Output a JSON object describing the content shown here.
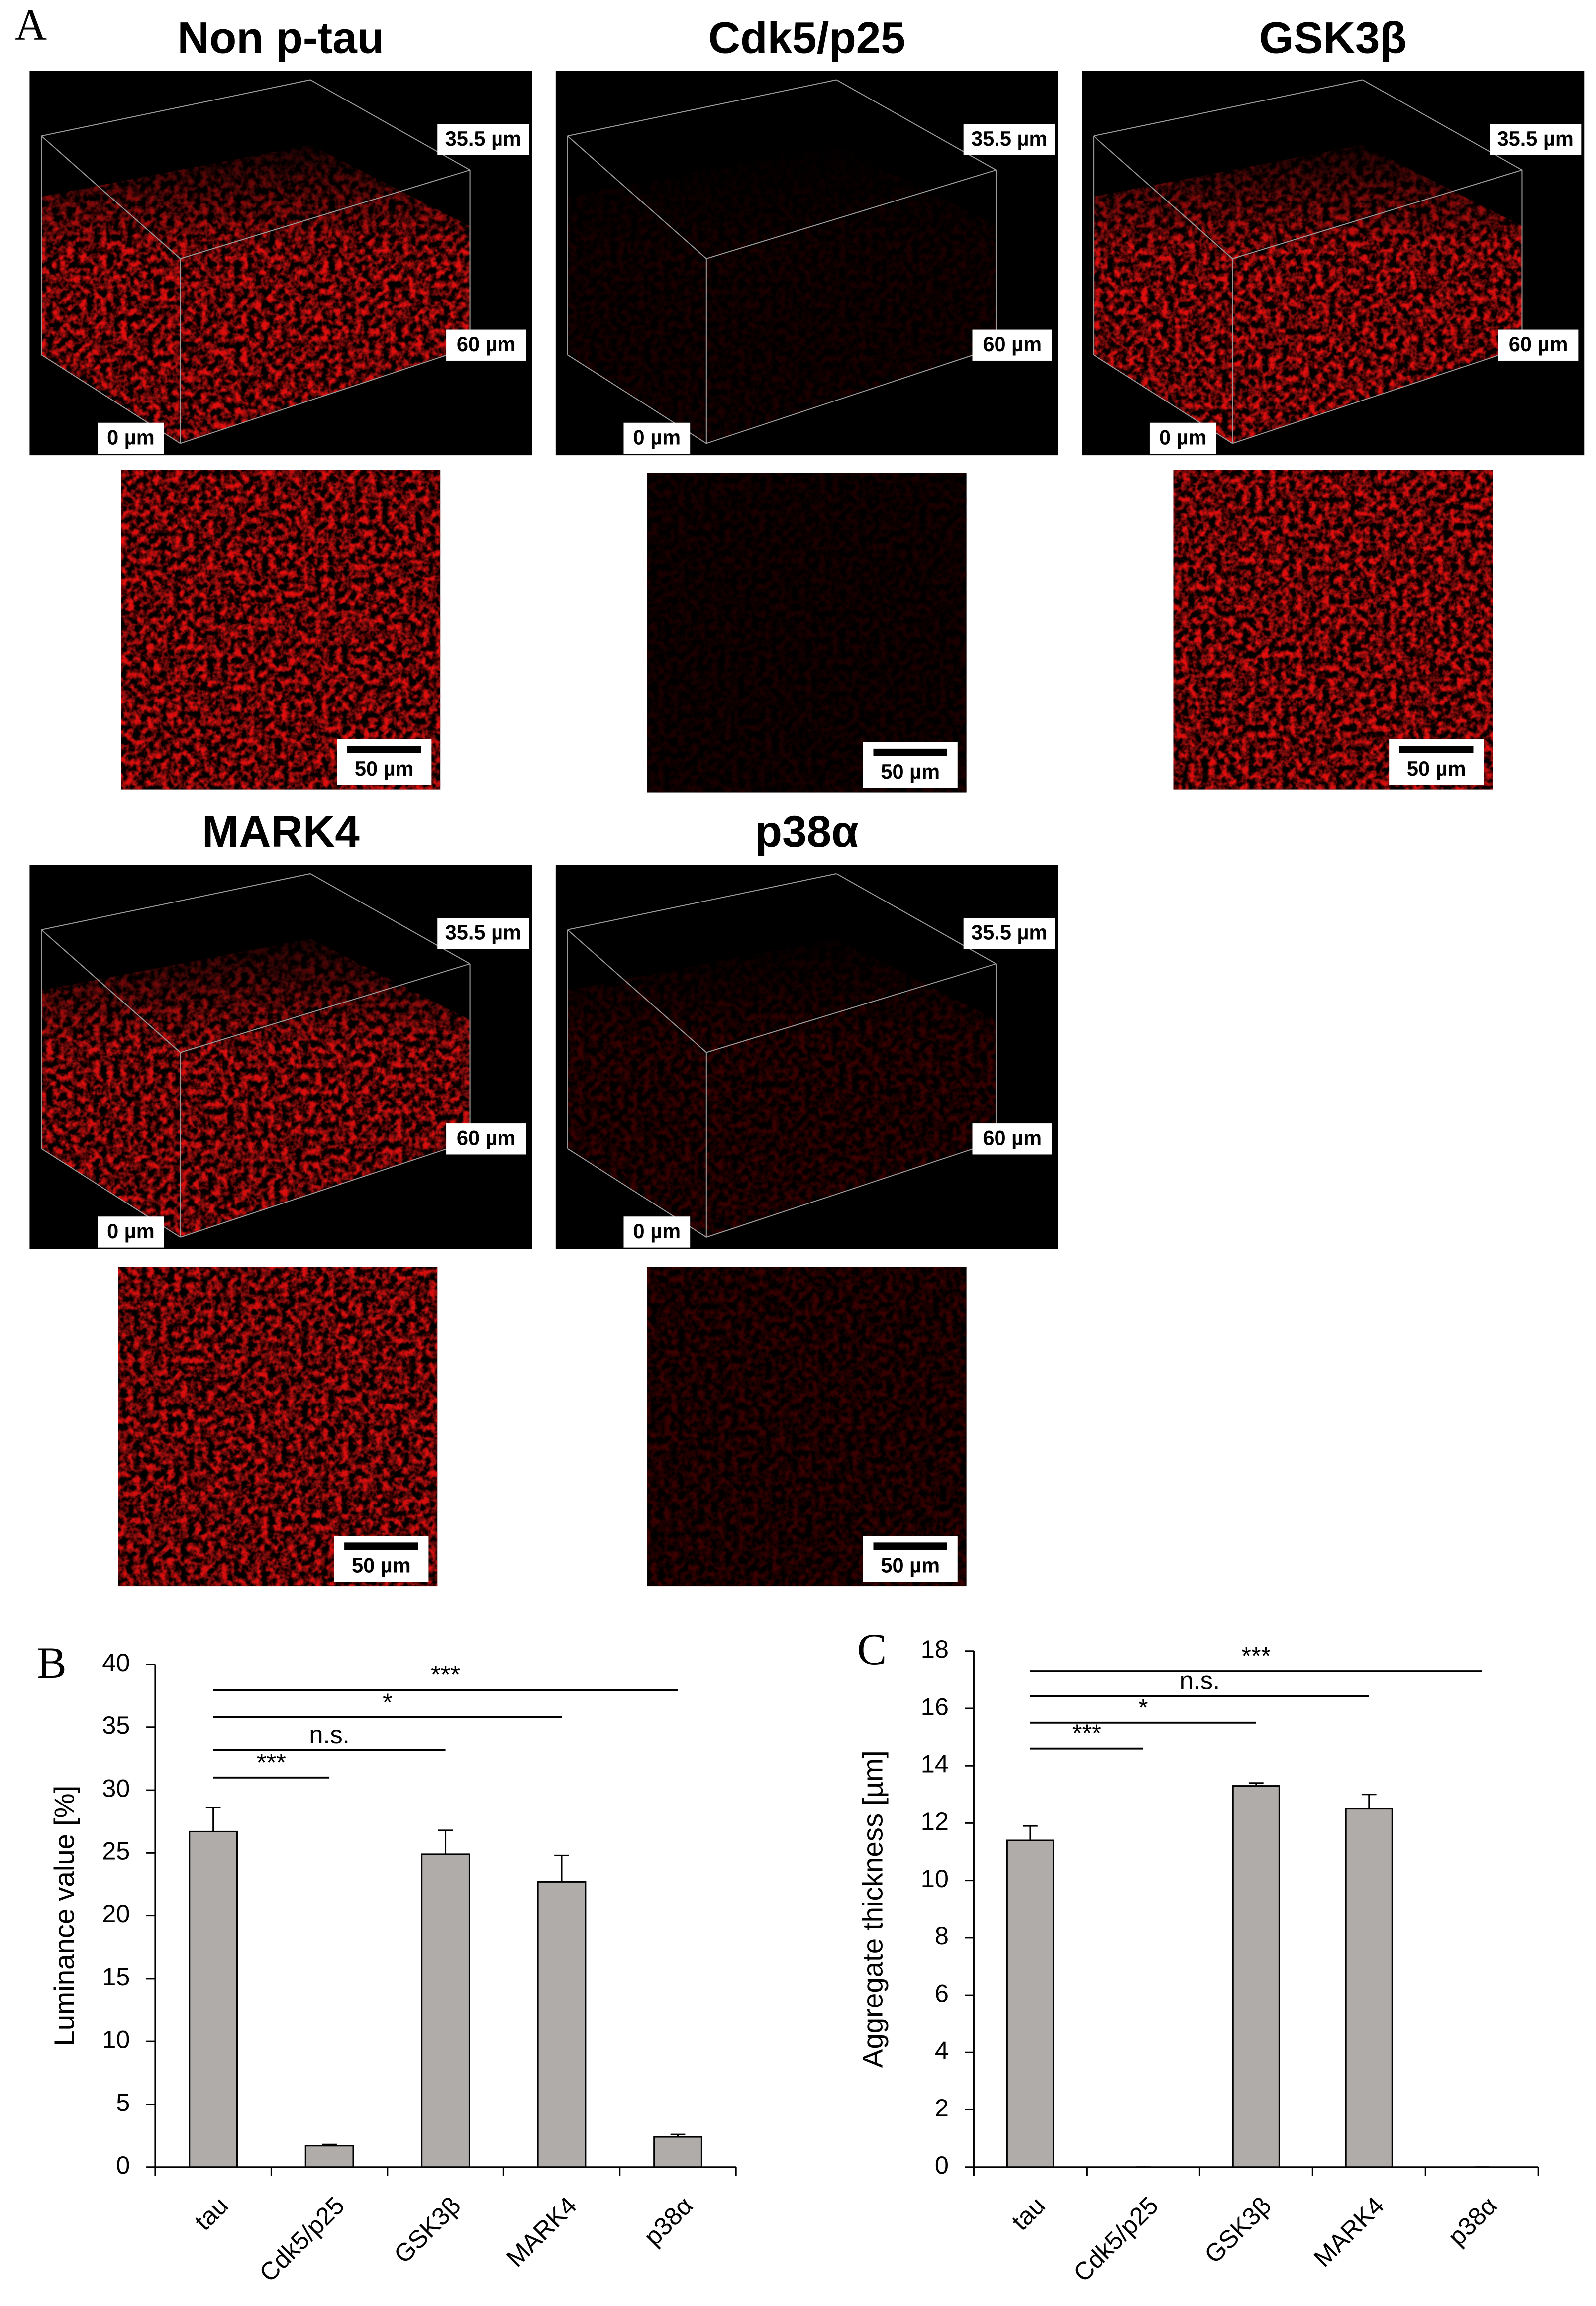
{
  "figure_label": "A",
  "panel_a": [
    {
      "title": "Non p-tau",
      "color": "#e01010",
      "height_label": "35.5 µm",
      "width_label": "60 µm",
      "origin_label": "0 µm",
      "scale_label": "50 µm"
    },
    {
      "title": "Cdk5/p25",
      "color": "#1c0000",
      "height_label": "35.5 µm",
      "width_label": "60 µm",
      "origin_label": "0 µm",
      "scale_label": "50 µm"
    },
    {
      "title": "GSK3β",
      "color": "#e01010",
      "height_label": "35.5 µm",
      "width_label": "60 µm",
      "origin_label": "0 µm",
      "scale_label": "50 µm"
    },
    {
      "title": "MARK4",
      "color": "#d81010",
      "height_label": "35.5 µm",
      "width_label": "60 µm",
      "origin_label": "0 µm",
      "scale_label": "50 µm"
    },
    {
      "title": "p38α",
      "color": "#3a0606",
      "height_label": "35.5 µm",
      "width_label": "60 µm",
      "origin_label": "0 µm",
      "scale_label": "50 µm"
    }
  ],
  "chart_data": [
    {
      "type": "bar",
      "panel_label": "B",
      "y_label": "Luminance value [%]",
      "categories": [
        "tau",
        "Cdk5/p25",
        "GSK3β",
        "MARK4",
        "p38α"
      ],
      "values": [
        26.7,
        1.7,
        24.9,
        22.7,
        2.4
      ],
      "errors": [
        1.9,
        0.1,
        1.9,
        2.1,
        0.2
      ],
      "color": "#b0acaa",
      "ylim": [
        0,
        40
      ],
      "yticks": [
        0,
        5,
        10,
        15,
        20,
        25,
        30,
        35,
        40
      ],
      "significance": [
        {
          "label": "***",
          "groups": [
            "tau",
            "Cdk5/p25"
          ],
          "y": 31
        },
        {
          "label": "n.s.",
          "groups": [
            "tau",
            "GSK3β"
          ],
          "y": 33.2
        },
        {
          "label": "*",
          "groups": [
            "tau",
            "MARK4"
          ],
          "y": 35.8
        },
        {
          "label": "***",
          "groups": [
            "tau",
            "p38α"
          ],
          "y": 38
        }
      ]
    },
    {
      "type": "bar",
      "panel_label": "C",
      "y_label": "Aggregate thickness [µm]",
      "categories": [
        "tau",
        "Cdk5/p25",
        "GSK3β",
        "MARK4",
        "p38α"
      ],
      "values": [
        11.4,
        0,
        13.3,
        12.5,
        0
      ],
      "errors": [
        0.5,
        0,
        0.1,
        0.5,
        0
      ],
      "color": "#b0acaa",
      "ylim": [
        0,
        18
      ],
      "yticks": [
        0,
        2,
        4,
        6,
        8,
        10,
        12,
        14,
        16,
        18
      ],
      "significance": [
        {
          "label": "***",
          "groups": [
            "tau",
            "Cdk5/p25"
          ],
          "y": 14.6
        },
        {
          "label": "*",
          "groups": [
            "tau",
            "GSK3β"
          ],
          "y": 15.5
        },
        {
          "label": "n.s.",
          "groups": [
            "tau",
            "MARK4"
          ],
          "y": 16.45
        },
        {
          "label": "***",
          "groups": [
            "tau",
            "p38α"
          ],
          "y": 17.3
        }
      ]
    }
  ]
}
